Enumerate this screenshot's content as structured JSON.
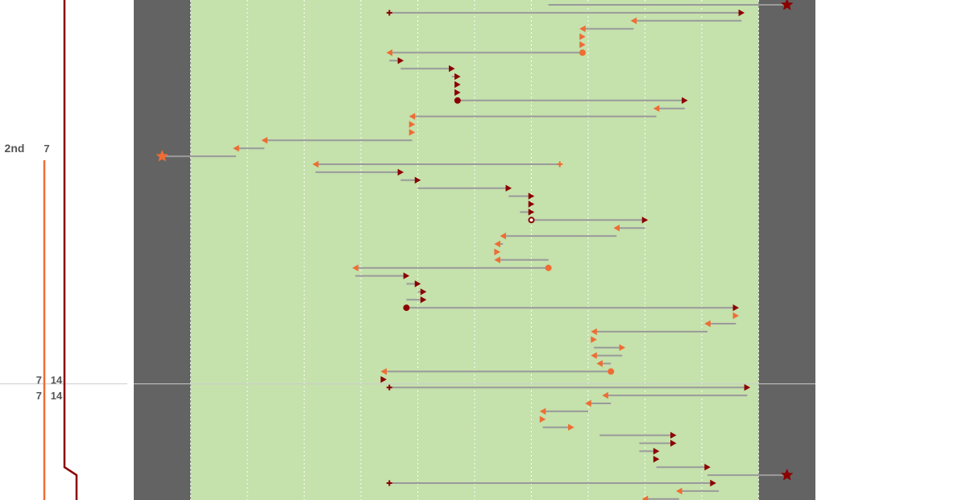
{
  "chart_data": {
    "type": "drive-chart",
    "field": {
      "xlim_yards": [
        -10,
        110
      ],
      "field_color": "#c5e1ac",
      "endzone_color": "#636363",
      "yardline_color": "#ffffff",
      "gridlines": true
    },
    "colors": {
      "team_a": "#8b0000",
      "team_b": "#ef6c33",
      "play_line": "#9a9a9a",
      "divider": "#cccccc"
    },
    "markers": {
      "start": "plus",
      "play": "triangle",
      "turnover": "circle",
      "touchdown": "star"
    },
    "score_labels": [
      {
        "row": 18,
        "text": "2nd",
        "side": "quarter"
      },
      {
        "row": 18,
        "text": "7",
        "side": "team_b"
      },
      {
        "row": 47,
        "text": "7",
        "side": "team_b"
      },
      {
        "row": 47,
        "text": "14",
        "side": "team_a"
      },
      {
        "row": 49,
        "text": "7",
        "side": "team_b"
      },
      {
        "row": 49,
        "text": "14",
        "side": "team_a"
      }
    ],
    "score_tracks": {
      "team_a": [
        [
          -1,
          48
        ],
        [
          -1,
          8
        ],
        [
          58,
          8
        ],
        [
          59,
          9.5
        ],
        [
          63,
          9.5
        ]
      ],
      "team_b": [
        [
          19.5,
          5.5
        ],
        [
          63,
          5.5
        ]
      ]
    },
    "period_divider_row": 48,
    "plays": [
      {
        "row": 0,
        "team": "a",
        "from": 63,
        "to": 105,
        "end": "touchdown"
      },
      {
        "row": 1,
        "team": "a",
        "from": 35,
        "to": 97,
        "start": "plus"
      },
      {
        "row": 2,
        "team": "b",
        "from": 97,
        "to": 78
      },
      {
        "row": 3,
        "team": "b",
        "from": 78,
        "to": 69
      },
      {
        "row": 4,
        "team": "b",
        "from": 69,
        "to": 69
      },
      {
        "row": 5,
        "team": "b",
        "from": 69,
        "to": 69
      },
      {
        "row": 6,
        "team": "b",
        "from": 69,
        "to": 35,
        "start": "circle"
      },
      {
        "row": 7,
        "team": "a",
        "from": 35,
        "to": 37
      },
      {
        "row": 8,
        "team": "a",
        "from": 37,
        "to": 46
      },
      {
        "row": 9,
        "team": "a",
        "from": 46,
        "to": 47
      },
      {
        "row": 10,
        "team": "a",
        "from": 47,
        "to": 47
      },
      {
        "row": 11,
        "team": "a",
        "from": 47,
        "to": 47
      },
      {
        "row": 12,
        "team": "a",
        "from": 47,
        "to": 87,
        "start": "circle"
      },
      {
        "row": 13,
        "team": "b",
        "from": 87,
        "to": 82
      },
      {
        "row": 14,
        "team": "b",
        "from": 82,
        "to": 39
      },
      {
        "row": 15,
        "team": "b",
        "from": 39,
        "to": 39
      },
      {
        "row": 16,
        "team": "b",
        "from": 39,
        "to": 39
      },
      {
        "row": 17,
        "team": "b",
        "from": 39,
        "to": 13
      },
      {
        "row": 18,
        "team": "b",
        "from": 13,
        "to": 8
      },
      {
        "row": 19,
        "team": "b",
        "from": 8,
        "to": -5,
        "end": "touchdown"
      },
      {
        "row": 20,
        "team": "b",
        "from": 65,
        "to": 22,
        "start": "plus"
      },
      {
        "row": 21,
        "team": "a",
        "from": 22,
        "to": 37
      },
      {
        "row": 22,
        "team": "a",
        "from": 37,
        "to": 40
      },
      {
        "row": 23,
        "team": "a",
        "from": 40,
        "to": 56
      },
      {
        "row": 24,
        "team": "a",
        "from": 56,
        "to": 60
      },
      {
        "row": 25,
        "team": "a",
        "from": 60,
        "to": 60
      },
      {
        "row": 26,
        "team": "a",
        "from": 58,
        "to": 60
      },
      {
        "row": 27,
        "team": "a",
        "from": 60,
        "to": 80,
        "start": "circle-open"
      },
      {
        "row": 28,
        "team": "b",
        "from": 80,
        "to": 75
      },
      {
        "row": 29,
        "team": "b",
        "from": 75,
        "to": 55
      },
      {
        "row": 30,
        "team": "b",
        "from": 55,
        "to": 54
      },
      {
        "row": 31,
        "team": "b",
        "from": 54,
        "to": 54
      },
      {
        "row": 32,
        "team": "b",
        "from": 63,
        "to": 54
      },
      {
        "row": 33,
        "team": "b",
        "from": 63,
        "to": 29,
        "start": "circle"
      },
      {
        "row": 34,
        "team": "a",
        "from": 29,
        "to": 38
      },
      {
        "row": 35,
        "team": "a",
        "from": 38,
        "to": 40
      },
      {
        "row": 36,
        "team": "a",
        "from": 40,
        "to": 41
      },
      {
        "row": 37,
        "team": "a",
        "from": 38,
        "to": 41
      },
      {
        "row": 38,
        "team": "a",
        "from": 38,
        "to": 96,
        "start": "circle"
      },
      {
        "row": 39,
        "team": "b",
        "from": 96,
        "to": 96
      },
      {
        "row": 40,
        "team": "b",
        "from": 96,
        "to": 91
      },
      {
        "row": 41,
        "team": "b",
        "from": 91,
        "to": 71
      },
      {
        "row": 42,
        "team": "b",
        "from": 71,
        "to": 71
      },
      {
        "row": 43,
        "team": "b",
        "from": 71,
        "to": 76
      },
      {
        "row": 44,
        "team": "b",
        "from": 76,
        "to": 71
      },
      {
        "row": 45,
        "team": "b",
        "from": 74,
        "to": 72
      },
      {
        "row": 46,
        "team": "b",
        "from": 74,
        "to": 34,
        "start": "circle"
      },
      {
        "row": 47,
        "team": "a",
        "from": 34,
        "to": 34
      },
      {
        "row": 48,
        "team": "a",
        "from": 35,
        "to": 98,
        "start": "plus"
      },
      {
        "row": 49,
        "team": "b",
        "from": 98,
        "to": 73
      },
      {
        "row": 50,
        "team": "b",
        "from": 74,
        "to": 70
      },
      {
        "row": 51,
        "team": "b",
        "from": 70,
        "to": 62
      },
      {
        "row": 52,
        "team": "b",
        "from": 62,
        "to": 62
      },
      {
        "row": 53,
        "team": "b",
        "from": 62,
        "to": 67
      },
      {
        "row": 54,
        "team": "a",
        "from": 72,
        "to": 85
      },
      {
        "row": 55,
        "team": "a",
        "from": 79,
        "to": 85
      },
      {
        "row": 56,
        "team": "a",
        "from": 79,
        "to": 82
      },
      {
        "row": 57,
        "team": "a",
        "from": 82,
        "to": 82
      },
      {
        "row": 58,
        "team": "a",
        "from": 82,
        "to": 91
      },
      {
        "row": 59,
        "team": "a",
        "from": 91,
        "to": 105,
        "end": "touchdown"
      },
      {
        "row": 60,
        "team": "a",
        "from": 35,
        "to": 92,
        "start": "plus"
      },
      {
        "row": 61,
        "team": "b",
        "from": 93,
        "to": 86
      },
      {
        "row": 62,
        "team": "b",
        "from": 86,
        "to": 80
      }
    ]
  }
}
